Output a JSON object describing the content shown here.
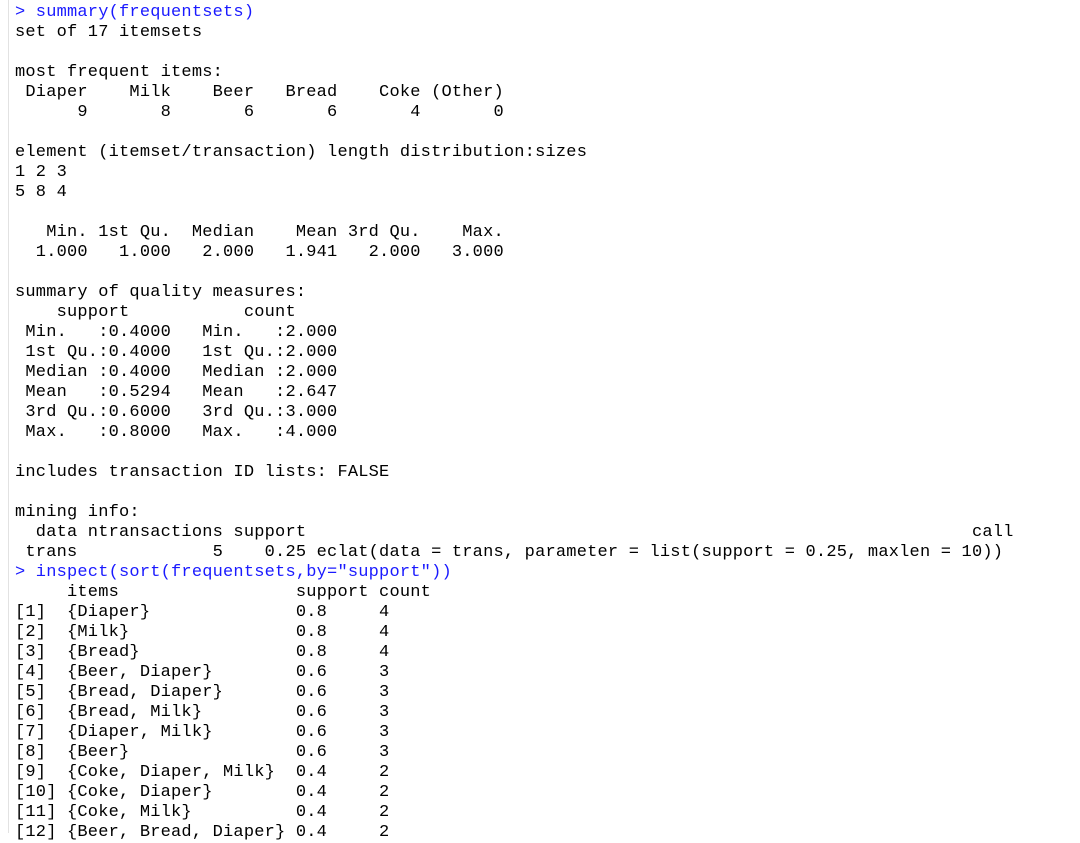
{
  "colors": {
    "command": "#1a1aff",
    "output": "#000000"
  },
  "console": {
    "lines": [
      {
        "kind": "cmd",
        "text": "> summary(frequentsets)"
      },
      {
        "kind": "out",
        "text": "set of 17 itemsets"
      },
      {
        "kind": "out",
        "text": ""
      },
      {
        "kind": "out",
        "text": "most frequent items:"
      },
      {
        "kind": "out",
        "text": " Diaper    Milk    Beer   Bread    Coke (Other) "
      },
      {
        "kind": "out",
        "text": "      9       8       6       6       4       0 "
      },
      {
        "kind": "out",
        "text": ""
      },
      {
        "kind": "out",
        "text": "element (itemset/transaction) length distribution:sizes"
      },
      {
        "kind": "out",
        "text": "1 2 3 "
      },
      {
        "kind": "out",
        "text": "5 8 4 "
      },
      {
        "kind": "out",
        "text": ""
      },
      {
        "kind": "out",
        "text": "   Min. 1st Qu.  Median    Mean 3rd Qu.    Max. "
      },
      {
        "kind": "out",
        "text": "  1.000   1.000   2.000   1.941   2.000   3.000 "
      },
      {
        "kind": "out",
        "text": ""
      },
      {
        "kind": "out",
        "text": "summary of quality measures:"
      },
      {
        "kind": "out",
        "text": "    support           count      "
      },
      {
        "kind": "out",
        "text": " Min.   :0.4000   Min.   :2.000  "
      },
      {
        "kind": "out",
        "text": " 1st Qu.:0.4000   1st Qu.:2.000  "
      },
      {
        "kind": "out",
        "text": " Median :0.4000   Median :2.000  "
      },
      {
        "kind": "out",
        "text": " Mean   :0.5294   Mean   :2.647  "
      },
      {
        "kind": "out",
        "text": " 3rd Qu.:0.6000   3rd Qu.:3.000  "
      },
      {
        "kind": "out",
        "text": " Max.   :0.8000   Max.   :4.000  "
      },
      {
        "kind": "out",
        "text": ""
      },
      {
        "kind": "out",
        "text": "includes transaction ID lists: FALSE "
      },
      {
        "kind": "out",
        "text": ""
      },
      {
        "kind": "out",
        "text": "mining info:"
      },
      {
        "kind": "out",
        "text": "  data ntransactions support                                                                call"
      },
      {
        "kind": "out",
        "text": " trans             5    0.25 eclat(data = trans, parameter = list(support = 0.25, maxlen = 10))"
      },
      {
        "kind": "cmd",
        "text": "> inspect(sort(frequentsets,by=\"support\"))"
      },
      {
        "kind": "out",
        "text": "     items                 support count"
      },
      {
        "kind": "out",
        "text": "[1]  {Diaper}              0.8     4"
      },
      {
        "kind": "out",
        "text": "[2]  {Milk}                0.8     4"
      },
      {
        "kind": "out",
        "text": "[3]  {Bread}               0.8     4"
      },
      {
        "kind": "out",
        "text": "[4]  {Beer, Diaper}        0.6     3"
      },
      {
        "kind": "out",
        "text": "[5]  {Bread, Diaper}       0.6     3"
      },
      {
        "kind": "out",
        "text": "[6]  {Bread, Milk}         0.6     3"
      },
      {
        "kind": "out",
        "text": "[7]  {Diaper, Milk}        0.6     3"
      },
      {
        "kind": "out",
        "text": "[8]  {Beer}                0.6     3"
      },
      {
        "kind": "out",
        "text": "[9]  {Coke, Diaper, Milk}  0.4     2"
      },
      {
        "kind": "out",
        "text": "[10] {Coke, Diaper}        0.4     2"
      },
      {
        "kind": "out",
        "text": "[11] {Coke, Milk}          0.4     2"
      },
      {
        "kind": "out",
        "text": "[12] {Beer, Bread, Diaper} 0.4     2"
      }
    ]
  }
}
